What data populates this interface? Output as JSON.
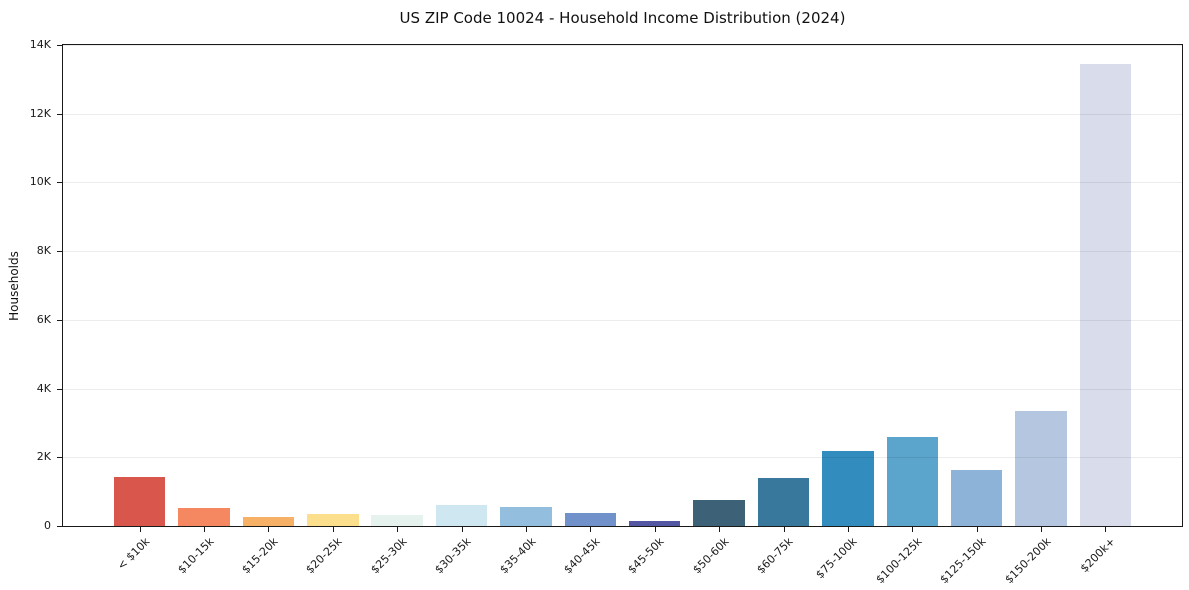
{
  "chart_data": {
    "type": "bar",
    "title": "US ZIP Code 10024 - Household Income Distribution (2024)",
    "xlabel": "",
    "ylabel": "Households",
    "categories": [
      "< $10k",
      "$10-15k",
      "$15-20k",
      "$20-25k",
      "$25-30k",
      "$30-35k",
      "$35-40k",
      "$40-45k",
      "$45-50k",
      "$50-60k",
      "$60-75k",
      "$75-100k",
      "$100-125k",
      "$125-150k",
      "$150-200k",
      "$200k+"
    ],
    "values": [
      1430,
      530,
      260,
      350,
      320,
      610,
      550,
      380,
      160,
      770,
      1390,
      2190,
      2580,
      1620,
      3350,
      13440
    ],
    "bar_colors": [
      "#d9564d",
      "#f58860",
      "#f6b166",
      "#fbdf8d",
      "#e6f2ee",
      "#cee7f0",
      "#94bedd",
      "#7191ca",
      "#5356a3",
      "#3d6278",
      "#38789c",
      "#338cbe",
      "#5ba4cb",
      "#8db3d8",
      "#b5c7e0",
      "#d9dcea"
    ],
    "ylim": [
      0,
      14000
    ],
    "y_ticks": [
      {
        "value": 0,
        "label": "0"
      },
      {
        "value": 2000,
        "label": "2K"
      },
      {
        "value": 4000,
        "label": "4K"
      },
      {
        "value": 6000,
        "label": "6K"
      },
      {
        "value": 8000,
        "label": "8K"
      },
      {
        "value": 10000,
        "label": "10K"
      },
      {
        "value": 12000,
        "label": "12K"
      },
      {
        "value": 14000,
        "label": "14K"
      }
    ],
    "grid": "horizontal",
    "legend": "none",
    "x_tick_rotation": -45,
    "bar_width_fraction": 0.8
  }
}
